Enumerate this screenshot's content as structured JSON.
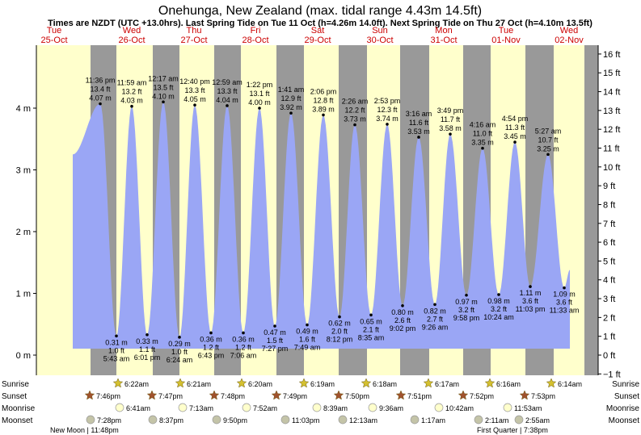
{
  "title": "Onehunga, New Zealand (max. tidal range 4.43m 14.5ft)",
  "subtitle": "Times are NZDT (UTC +13.0hrs). Last Spring Tide on Tue 11 Oct (h=4.26m 14.0ft). Next Spring Tide on Thu 27 Oct (h=4.10m 13.5ft)",
  "colors": {
    "day": "#ffffcc",
    "night": "#999999",
    "tide": "#9aa6f5",
    "header_text": "#cc0000",
    "sunrise_star": "#d4c030",
    "sunset_star": "#a0522d",
    "moonrise": "#ffffcc",
    "moonset": "#c4c4a8"
  },
  "chart_data": {
    "type": "area",
    "title": "Onehunga, New Zealand (max. tidal range 4.43m 14.5ft)",
    "y_left": {
      "unit": "m",
      "ylim": [
        -0.305,
        4.88
      ],
      "ticks": [
        "0 m",
        "1 m",
        "2 m",
        "3 m",
        "4 m"
      ]
    },
    "y_right": {
      "unit": "ft",
      "ticks": [
        "−1 ft",
        "0 ft",
        "1 ft",
        "2 ft",
        "3 ft",
        "4 ft",
        "5 ft",
        "6 ft",
        "7 ft",
        "8 ft",
        "9 ft",
        "10 ft",
        "11 ft",
        "12 ft",
        "13 ft",
        "14 ft",
        "15 ft",
        "16 ft"
      ]
    },
    "days": [
      {
        "name": "Tue",
        "date": "25-Oct"
      },
      {
        "name": "Wed",
        "date": "26-Oct"
      },
      {
        "name": "Thu",
        "date": "27-Oct"
      },
      {
        "name": "Fri",
        "date": "28-Oct"
      },
      {
        "name": "Sat",
        "date": "29-Oct"
      },
      {
        "name": "Sun",
        "date": "30-Oct"
      },
      {
        "name": "Mon",
        "date": "31-Oct"
      },
      {
        "name": "Tue",
        "date": "01-Nov"
      },
      {
        "name": "Wed",
        "date": "02-Nov"
      }
    ],
    "series": [
      {
        "points": [
          {
            "kind": "high",
            "time": "11:36 pm",
            "ft": "13.4 ft",
            "m": 4.07,
            "m_label": "4.07 m"
          },
          {
            "kind": "low",
            "time": "5:43 am",
            "ft": "1.0 ft",
            "m": 0.31,
            "m_label": "0.31 m"
          },
          {
            "kind": "high",
            "time": "11:59 am",
            "ft": "13.2 ft",
            "m": 4.03,
            "m_label": "4.03 m"
          },
          {
            "kind": "low",
            "time": "6:01 pm",
            "ft": "1.1 ft",
            "m": 0.33,
            "m_label": "0.33 m"
          },
          {
            "kind": "high",
            "time": "12:17 am",
            "ft": "13.5 ft",
            "m": 4.1,
            "m_label": "4.10 m"
          },
          {
            "kind": "low",
            "time": "6:24 am",
            "ft": "1.0 ft",
            "m": 0.29,
            "m_label": "0.29 m"
          },
          {
            "kind": "high",
            "time": "12:40 pm",
            "ft": "13.3 ft",
            "m": 4.05,
            "m_label": "4.05 m"
          },
          {
            "kind": "low",
            "time": "6:43 pm",
            "ft": "1.2 ft",
            "m": 0.36,
            "m_label": "0.36 m"
          },
          {
            "kind": "high",
            "time": "12:59 am",
            "ft": "13.3 ft",
            "m": 4.04,
            "m_label": "4.04 m"
          },
          {
            "kind": "low",
            "time": "7:06 am",
            "ft": "1.2 ft",
            "m": 0.36,
            "m_label": "0.36 m"
          },
          {
            "kind": "high",
            "time": "1:22 pm",
            "ft": "13.1 ft",
            "m": 4.0,
            "m_label": "4.00 m"
          },
          {
            "kind": "low",
            "time": "7:27 pm",
            "ft": "1.5 ft",
            "m": 0.47,
            "m_label": "0.47 m"
          },
          {
            "kind": "high",
            "time": "1:41 am",
            "ft": "12.9 ft",
            "m": 3.92,
            "m_label": "3.92 m"
          },
          {
            "kind": "low",
            "time": "7:49 am",
            "ft": "1.6 ft",
            "m": 0.49,
            "m_label": "0.49 m"
          },
          {
            "kind": "high",
            "time": "2:06 pm",
            "ft": "12.8 ft",
            "m": 3.89,
            "m_label": "3.89 m"
          },
          {
            "kind": "low",
            "time": "8:12 pm",
            "ft": "2.0 ft",
            "m": 0.62,
            "m_label": "0.62 m"
          },
          {
            "kind": "high",
            "time": "2:26 am",
            "ft": "12.2 ft",
            "m": 3.73,
            "m_label": "3.73 m"
          },
          {
            "kind": "low",
            "time": "8:35 am",
            "ft": "2.1 ft",
            "m": 0.65,
            "m_label": "0.65 m"
          },
          {
            "kind": "high",
            "time": "2:53 pm",
            "ft": "12.3 ft",
            "m": 3.74,
            "m_label": "3.74 m"
          },
          {
            "kind": "low",
            "time": "9:02 pm",
            "ft": "2.6 ft",
            "m": 0.8,
            "m_label": "0.80 m"
          },
          {
            "kind": "high",
            "time": "3:16 am",
            "ft": "11.6 ft",
            "m": 3.53,
            "m_label": "3.53 m"
          },
          {
            "kind": "low",
            "time": "9:26 am",
            "ft": "2.7 ft",
            "m": 0.82,
            "m_label": "0.82 m"
          },
          {
            "kind": "high",
            "time": "3:49 pm",
            "ft": "11.7 ft",
            "m": 3.58,
            "m_label": "3.58 m"
          },
          {
            "kind": "low",
            "time": "9:58 pm",
            "ft": "3.2 ft",
            "m": 0.97,
            "m_label": "0.97 m"
          },
          {
            "kind": "high",
            "time": "4:16 am",
            "ft": "11.0 ft",
            "m": 3.35,
            "m_label": "3.35 m"
          },
          {
            "kind": "low",
            "time": "10:24 am",
            "ft": "3.2 ft",
            "m": 0.98,
            "m_label": "0.98 m"
          },
          {
            "kind": "high",
            "time": "4:54 pm",
            "ft": "11.3 ft",
            "m": 3.45,
            "m_label": "3.45 m"
          },
          {
            "kind": "low",
            "time": "11:03 pm",
            "ft": "3.6 ft",
            "m": 1.11,
            "m_label": "1.11 m"
          },
          {
            "kind": "high",
            "time": "5:27 am",
            "ft": "10.7 ft",
            "m": 3.25,
            "m_label": "3.25 m"
          },
          {
            "kind": "low",
            "time": "11:33 am",
            "ft": "3.6 ft",
            "m": 1.09,
            "m_label": "1.09 m"
          }
        ]
      }
    ]
  },
  "astro": {
    "row_labels": [
      "Sunrise",
      "Sunset",
      "Moonrise",
      "Moonset"
    ],
    "sunrise": [
      "6:22am",
      "6:21am",
      "6:20am",
      "6:19am",
      "6:18am",
      "6:17am",
      "6:16am",
      "6:14am"
    ],
    "sunset": [
      "7:46pm",
      "7:47pm",
      "7:48pm",
      "7:49pm",
      "7:50pm",
      "7:51pm",
      "7:52pm",
      "7:53pm"
    ],
    "moonrise": [
      "6:41am",
      "7:13am",
      "7:52am",
      "8:39am",
      "9:36am",
      "10:42am",
      "11:53am"
    ],
    "moonset": [
      "7:28pm",
      "8:37pm",
      "9:50pm",
      "11:03pm",
      "12:13am",
      "1:17am",
      "2:11am",
      "2:55am"
    ],
    "phases": [
      "New Moon | 11:48pm",
      "First Quarter | 7:38pm"
    ]
  }
}
